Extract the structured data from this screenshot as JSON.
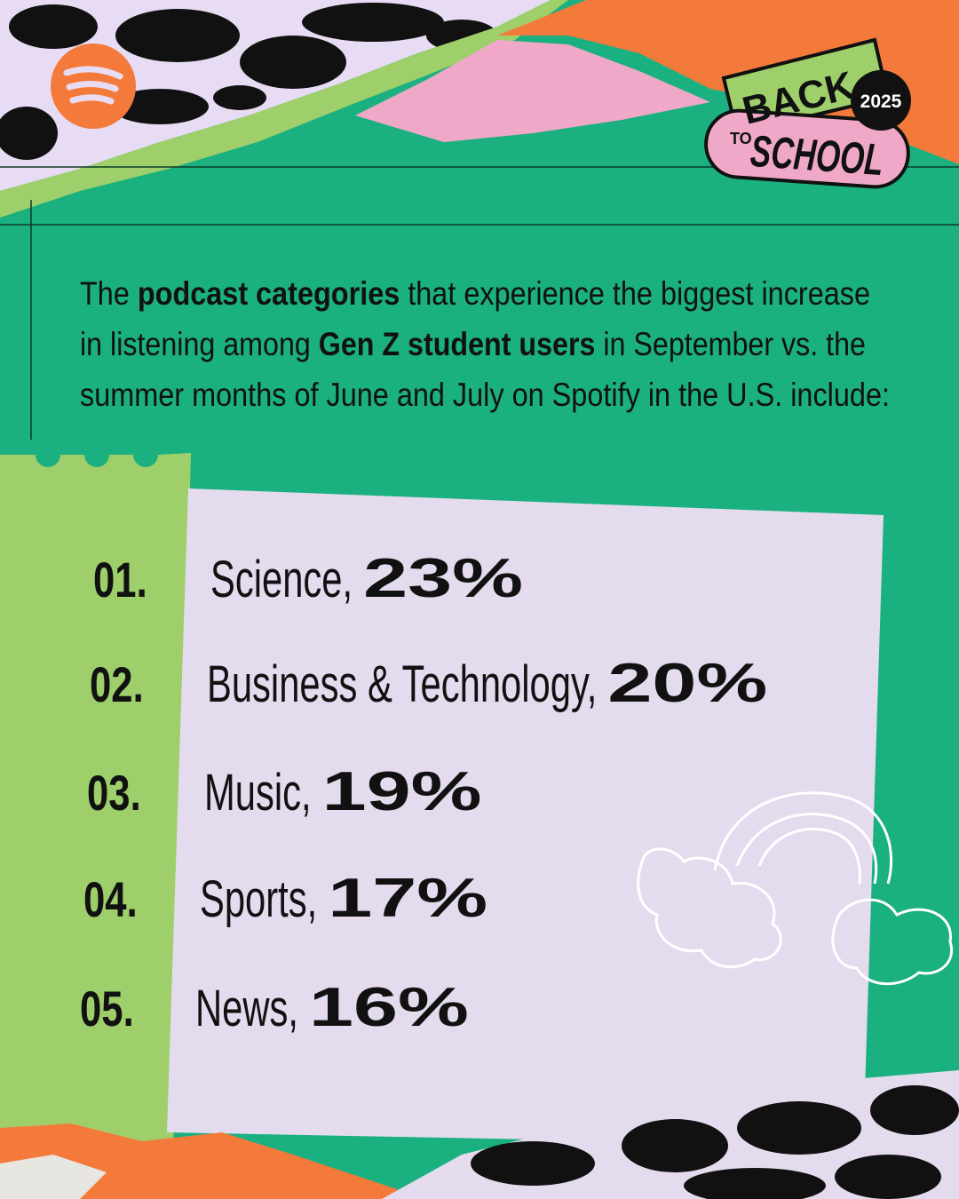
{
  "badge": {
    "line1": "BACK",
    "year": "2025",
    "small": "TO",
    "line2": "SCHOOL"
  },
  "intro": {
    "lines": [
      [
        {
          "text": "The ",
          "bold": false
        },
        {
          "text": "podcast categories",
          "bold": true
        },
        {
          "text": " that experience the biggest increase",
          "bold": false
        }
      ],
      [
        {
          "text": "in listening among ",
          "bold": false
        },
        {
          "text": "Gen Z student users",
          "bold": true
        },
        {
          "text": " in September vs. the",
          "bold": false
        }
      ],
      [
        {
          "text": "summer months of June and July on Spotify in the U.S. include:",
          "bold": false
        }
      ]
    ]
  },
  "items": [
    {
      "rank": "01.",
      "name": "Science,",
      "value": "23%"
    },
    {
      "rank": "02.",
      "name": "Business & Technology,",
      "value": "20%"
    },
    {
      "rank": "03.",
      "name": "Music,",
      "value": "19%"
    },
    {
      "rank": "04.",
      "name": "Sports,",
      "value": "17%"
    },
    {
      "rank": "05.",
      "name": "News,",
      "value": "16%"
    }
  ]
}
